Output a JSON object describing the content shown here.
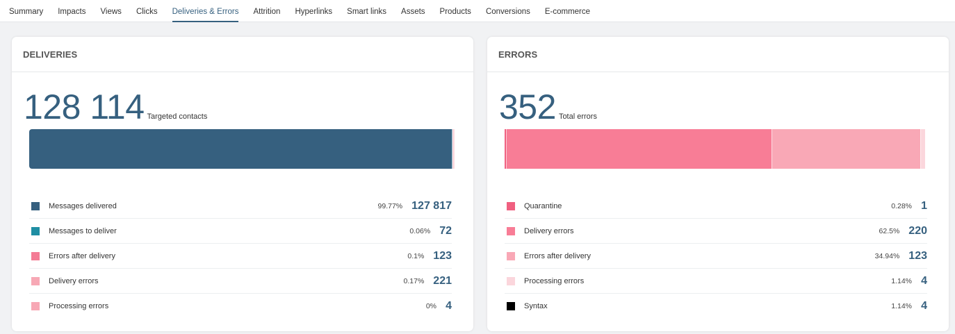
{
  "tabs": [
    {
      "label": "Summary"
    },
    {
      "label": "Impacts"
    },
    {
      "label": "Views"
    },
    {
      "label": "Clicks"
    },
    {
      "label": "Deliveries & Errors",
      "active": true
    },
    {
      "label": "Attrition"
    },
    {
      "label": "Hyperlinks"
    },
    {
      "label": "Smart links"
    },
    {
      "label": "Assets"
    },
    {
      "label": "Products"
    },
    {
      "label": "Conversions"
    },
    {
      "label": "E-commerce"
    }
  ],
  "deliveries": {
    "title": "DELIVERIES",
    "total": "128 114",
    "total_label": "Targeted contacts",
    "bar": [
      {
        "share": 99.77,
        "color": "#36607f"
      },
      {
        "share": 0.06,
        "color": "#1f8ea3"
      },
      {
        "share": 0.1,
        "color": "#f47c95"
      },
      {
        "share": 0.17,
        "color": "#f7a8b5"
      },
      {
        "share": 0,
        "color": "#f7a8b5"
      }
    ],
    "items": [
      {
        "label": "Messages delivered",
        "percent": "99.77%",
        "value": "127 817",
        "color": "#36607f"
      },
      {
        "label": "Messages to deliver",
        "percent": "0.06%",
        "value": "72",
        "color": "#1f8ea3"
      },
      {
        "label": "Errors after delivery",
        "percent": "0.1%",
        "value": "123",
        "color": "#f47c95"
      },
      {
        "label": "Delivery errors",
        "percent": "0.17%",
        "value": "221",
        "color": "#f7a8b5"
      },
      {
        "label": "Processing errors",
        "percent": "0%",
        "value": "4",
        "color": "#f7a8b5"
      }
    ]
  },
  "errors": {
    "title": "ERRORS",
    "total": "352",
    "total_label": "Total errors",
    "bar": [
      {
        "share": 0.28,
        "color": "#f06080"
      },
      {
        "share": 62.5,
        "color": "#f87d96"
      },
      {
        "share": 34.94,
        "color": "#f9a8b6"
      },
      {
        "share": 1.14,
        "color": "#fbd6dc"
      },
      {
        "share": 1.14,
        "color": "#ffffff"
      }
    ],
    "items": [
      {
        "label": "Quarantine",
        "percent": "0.28%",
        "value": "1",
        "color": "#f06080"
      },
      {
        "label": "Delivery errors",
        "percent": "62.5%",
        "value": "220",
        "color": "#f87d96"
      },
      {
        "label": "Errors after delivery",
        "percent": "34.94%",
        "value": "123",
        "color": "#f9a8b6"
      },
      {
        "label": "Processing errors",
        "percent": "1.14%",
        "value": "4",
        "color": "#fbd6dc"
      },
      {
        "label": "Syntax",
        "percent": "1.14%",
        "value": "4",
        "color": "#000000"
      }
    ]
  }
}
